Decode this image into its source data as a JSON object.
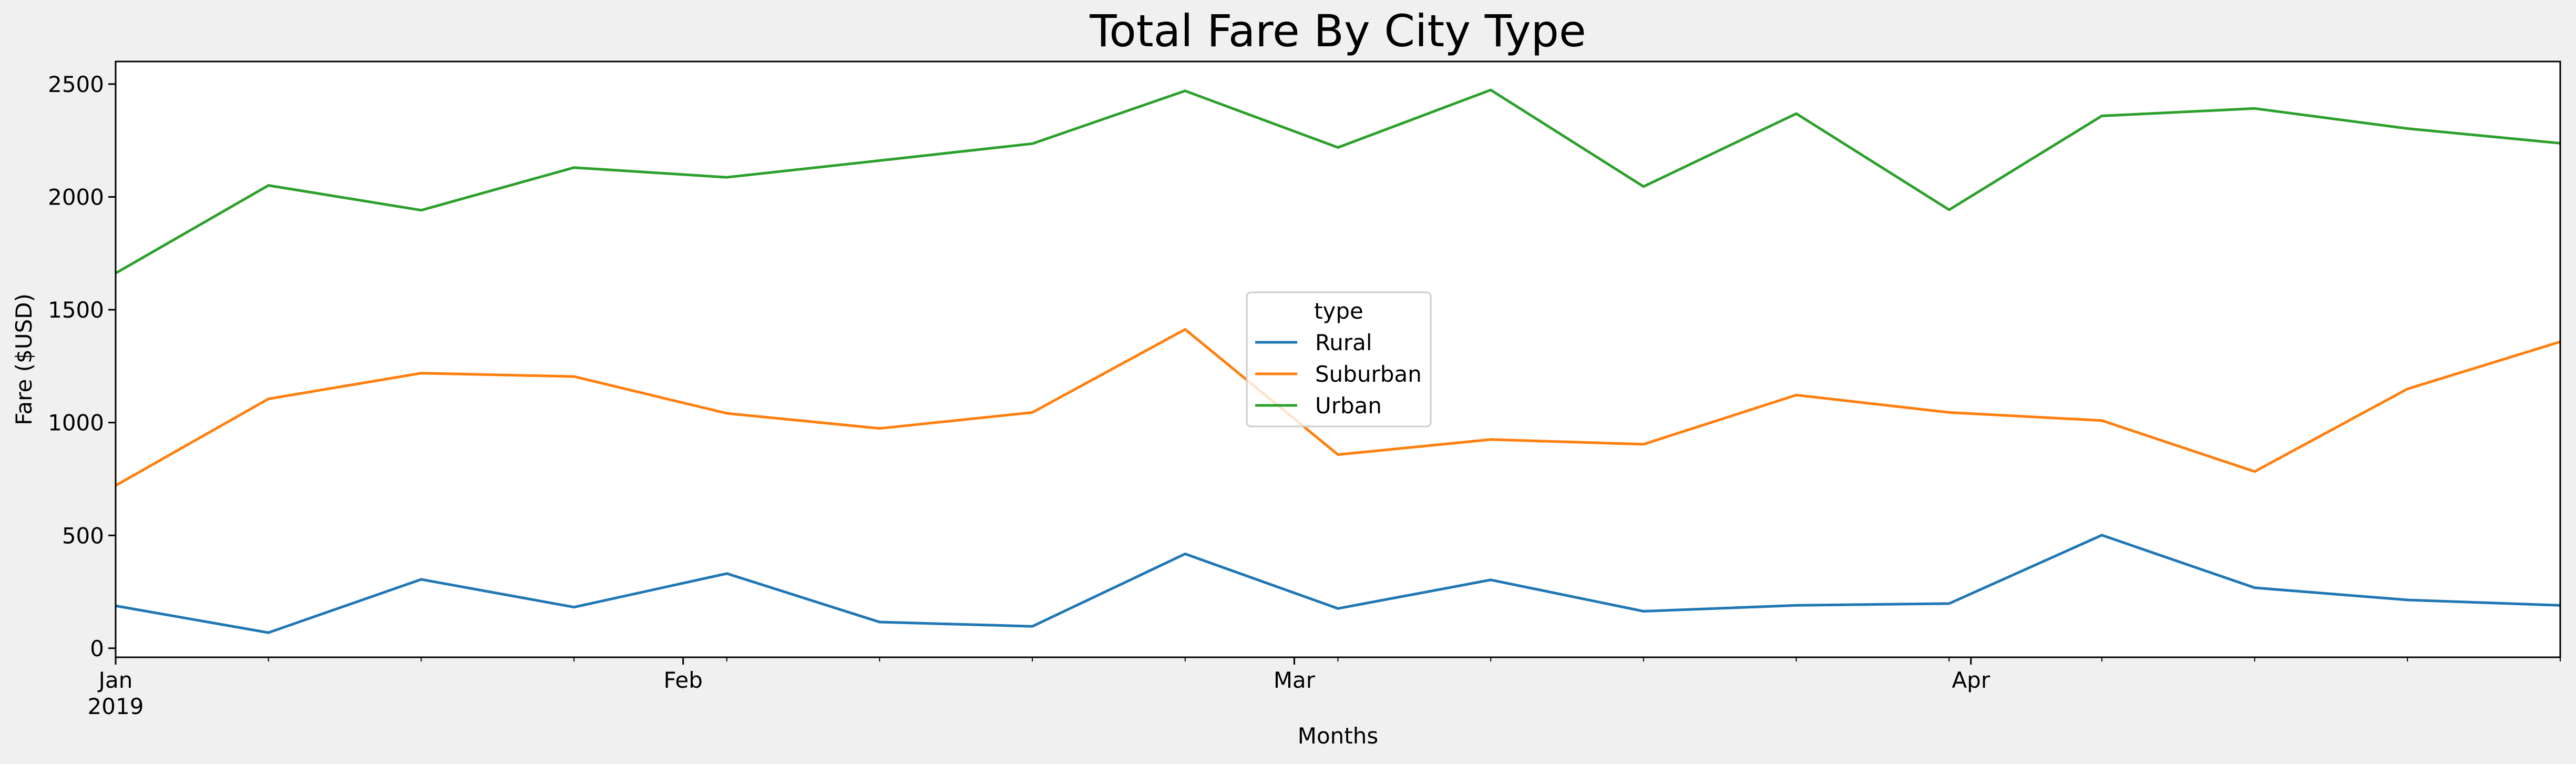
{
  "chart_data": {
    "type": "line",
    "title": "Total Fare By City Type",
    "xlabel": "Months",
    "ylabel": "Fare ($USD)",
    "x": [
      "2019-01-06",
      "2019-01-13",
      "2019-01-20",
      "2019-01-27",
      "2019-02-03",
      "2019-02-10",
      "2019-02-17",
      "2019-02-24",
      "2019-03-03",
      "2019-03-10",
      "2019-03-17",
      "2019-03-24",
      "2019-03-31",
      "2019-04-07",
      "2019-04-14",
      "2019-04-21",
      "2019-04-28"
    ],
    "x_ticks": [
      {
        "date": "2019-01-01",
        "label": "Jan",
        "sublabel": "2019"
      },
      {
        "date": "2019-02-01",
        "label": "Feb",
        "sublabel": ""
      },
      {
        "date": "2019-03-01",
        "label": "Mar",
        "sublabel": ""
      },
      {
        "date": "2019-04-01",
        "label": "Apr",
        "sublabel": ""
      }
    ],
    "xlim": [
      "2019-01-06",
      "2019-04-28"
    ],
    "ylim": [
      -40,
      2600
    ],
    "y_ticks": [
      0,
      500,
      1000,
      1500,
      2000,
      2500
    ],
    "grid": false,
    "legend_title": "type",
    "legend_position": "center",
    "series": [
      {
        "name": "Rural",
        "color": "#1f77b4",
        "values": [
          188,
          69,
          305,
          182,
          331,
          116,
          97,
          418,
          176,
          303,
          164,
          190,
          198,
          501,
          268,
          214,
          190
        ]
      },
      {
        "name": "Suburban",
        "color": "#ff7f0e",
        "values": [
          721,
          1105,
          1219,
          1204,
          1041,
          974,
          1045,
          1413,
          858,
          925,
          904,
          1122,
          1045,
          1009,
          783,
          1149,
          1358
        ]
      },
      {
        "name": "Urban",
        "color": "#2ca02c",
        "values": [
          1662,
          2051,
          1941,
          2130,
          2087,
          2161,
          2236,
          2470,
          2219,
          2474,
          2046,
          2369,
          1943,
          2359,
          2392,
          2303,
          2238
        ]
      }
    ]
  }
}
